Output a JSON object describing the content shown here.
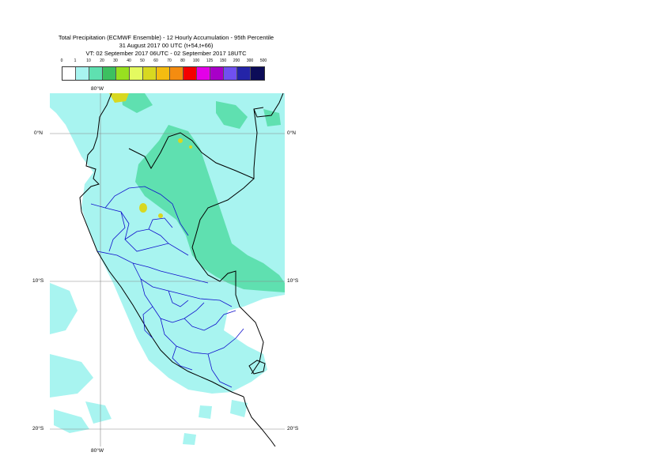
{
  "title": {
    "line1": "Total Precipitation (ECMWF Ensemble) - 12 Hourly Accumulation - 95th Percentile",
    "line2": "31 August 2017 00 UTC (t+54,t+66)",
    "line3": "VT: 02 September 2017 06UTC - 02 September 2017 18UTC"
  },
  "legend": {
    "ticks": [
      "0",
      "1",
      "10",
      "20",
      "30",
      "40",
      "50",
      "60",
      "70",
      "80",
      "100",
      "125",
      "150",
      "200",
      "300",
      "500"
    ],
    "colors": [
      "#ffffff",
      "#a8f4f0",
      "#5fe0b0",
      "#3cc060",
      "#98e020",
      "#e4fa60",
      "#d8d820",
      "#f4bc10",
      "#f48c10",
      "#f40000",
      "#e400e8",
      "#a800c8",
      "#7050f0",
      "#2424a8",
      "#0c0c58"
    ]
  },
  "map": {
    "graticule": {
      "lon_top": "80°W",
      "lon_bottom": "80°W",
      "lat_0_left": "0°N",
      "lat_0_right": "0°N",
      "lat_10_left": "10°S",
      "lat_10_right": "10°S",
      "lat_20_left": "20°S",
      "lat_20_right": "20°S"
    },
    "colors": {
      "ocean": "#ffffff",
      "light_precip": "#a8f4f0",
      "moderate_precip": "#5fe0b0",
      "heavy_precip": "#d8d820",
      "coast": "#000000",
      "admin": "#0000cc",
      "gridline": "#888888"
    }
  }
}
